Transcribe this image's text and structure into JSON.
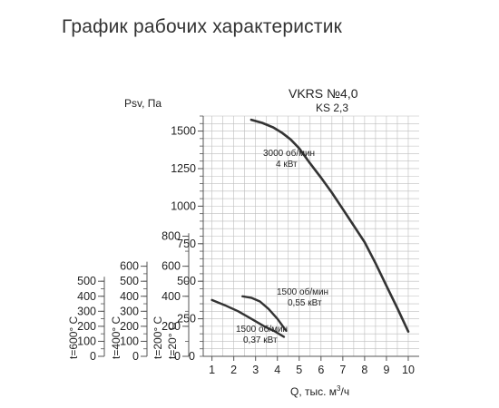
{
  "page_title": "График рабочих характеристик",
  "chart_data": {
    "type": "line",
    "model": "VKRS №4,0",
    "model_sub": "KS 2,3",
    "xlabel_text": "Q, тыс. м",
    "xlabel_sup": "3",
    "xlabel_suffix": "/ч",
    "ylabel": "Psv, Па",
    "xlim": [
      0.6,
      10.5
    ],
    "ylim": [
      0,
      1600
    ],
    "x_ticks": [
      "1",
      "2",
      "3",
      "4",
      "5",
      "6",
      "7",
      "8",
      "9",
      "10"
    ],
    "y_ticks": [
      "250",
      "500",
      "750",
      "1000",
      "1250",
      "1500"
    ],
    "y_tick_values": [
      250,
      500,
      750,
      1000,
      1250,
      1500
    ],
    "grid": true,
    "aux_axes": [
      {
        "label": "t=600° C",
        "ticks": [
          "0",
          "100",
          "200",
          "300",
          "400",
          "500"
        ],
        "max_value": 530
      },
      {
        "label": "t=400° C",
        "ticks": [
          "0",
          "100",
          "200",
          "300",
          "400",
          "500",
          "600"
        ],
        "max_value": 630
      },
      {
        "label": "t=200° C",
        "ticks": [
          "0",
          "200",
          "400",
          "600",
          "800"
        ],
        "max_value": 820
      },
      {
        "label": "t=20° C",
        "ticks": [
          "0"
        ],
        "max_value": 1600
      }
    ],
    "series": [
      {
        "line1": "3000 об/мин",
        "line2": "4 кВт",
        "x": [
          2.8,
          3.3,
          3.8,
          4.2,
          4.6,
          5.0,
          5.5,
          6.0,
          6.5,
          7.0,
          7.5,
          8.0,
          8.5,
          9.0,
          9.5,
          10.0
        ],
        "y": [
          1575,
          1555,
          1525,
          1490,
          1445,
          1385,
          1285,
          1190,
          1090,
          980,
          870,
          760,
          620,
          470,
          320,
          165
        ]
      },
      {
        "line1": "1500 об/мин",
        "line2": "0,55 кВт",
        "x": [
          2.4,
          2.8,
          3.2,
          3.6,
          4.0,
          4.4
        ],
        "y": [
          400,
          390,
          365,
          315,
          250,
          170
        ]
      },
      {
        "line1": "1500 об/мин",
        "line2": "0,37 кВт",
        "x": [
          1.0,
          1.6,
          2.2,
          2.8,
          3.4,
          3.9,
          4.3
        ],
        "y": [
          375,
          340,
          300,
          250,
          200,
          165,
          130
        ]
      }
    ]
  }
}
